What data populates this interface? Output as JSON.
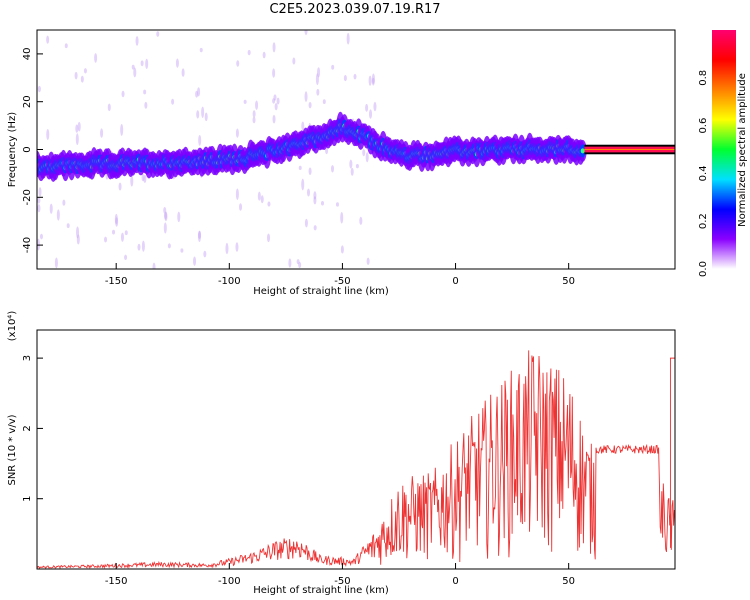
{
  "title": "C2E5.2023.039.07.19.R17",
  "chart_data": [
    {
      "type": "heatmap",
      "xlabel": "Height of straight line (km)",
      "ylabel": "Frequency (Hz)",
      "xlim": [
        -185,
        97
      ],
      "ylim": [
        -50,
        50
      ],
      "xticks": [
        -150,
        -100,
        -50,
        0,
        50
      ],
      "yticks": [
        -40,
        -20,
        0,
        20,
        40
      ],
      "colorbar": {
        "label": "Normalized spectral amplitude",
        "range": [
          0.0,
          1.0
        ],
        "ticks": [
          "0.0",
          "0.2",
          "0.4",
          "0.6",
          "0.8"
        ],
        "colors": [
          "#ffffff",
          "#8a00ff",
          "#0000ff",
          "#00e0ff",
          "#00ff30",
          "#ffff00",
          "#ff8000",
          "#ff0000",
          "#ff0070"
        ]
      },
      "track": [
        {
          "x": -185,
          "freq": -7
        },
        {
          "x": -150,
          "freq": -6
        },
        {
          "x": -110,
          "freq": -5
        },
        {
          "x": -90,
          "freq": -3
        },
        {
          "x": -75,
          "freq": 1
        },
        {
          "x": -60,
          "freq": 5
        },
        {
          "x": -50,
          "freq": 9
        },
        {
          "x": -40,
          "freq": 5
        },
        {
          "x": -30,
          "freq": 0
        },
        {
          "x": -20,
          "freq": -3
        },
        {
          "x": 0,
          "freq": -1
        },
        {
          "x": 30,
          "freq": 0
        },
        {
          "x": 55,
          "freq": 0
        },
        {
          "x": 97,
          "freq": 0
        }
      ]
    },
    {
      "type": "line",
      "xlabel": "Height of straight line (km)",
      "ylabel": "SNR (10 * v/v)",
      "scale_label": "(x10⁴)",
      "xlim": [
        -185,
        97
      ],
      "ylim": [
        0,
        3.4
      ],
      "xticks": [
        -150,
        -100,
        -50,
        0,
        50
      ],
      "yticks": [
        1,
        2,
        3
      ],
      "color": "#ee3333",
      "envelope": [
        {
          "x": -185,
          "y": 0.04
        },
        {
          "x": -160,
          "y": 0.06
        },
        {
          "x": -130,
          "y": 0.1
        },
        {
          "x": -110,
          "y": 0.08
        },
        {
          "x": -100,
          "y": 0.15
        },
        {
          "x": -90,
          "y": 0.25
        },
        {
          "x": -80,
          "y": 0.4
        },
        {
          "x": -70,
          "y": 0.5
        },
        {
          "x": -60,
          "y": 0.2
        },
        {
          "x": -45,
          "y": 0.15
        },
        {
          "x": -35,
          "y": 0.6
        },
        {
          "x": -25,
          "y": 1.3
        },
        {
          "x": -10,
          "y": 1.4
        },
        {
          "x": 5,
          "y": 2.1
        },
        {
          "x": 20,
          "y": 2.7
        },
        {
          "x": 35,
          "y": 3.2
        },
        {
          "x": 50,
          "y": 2.8
        },
        {
          "x": 60,
          "y": 1.8
        },
        {
          "x": 85,
          "y": 1.8
        },
        {
          "x": 95,
          "y": 1.0
        }
      ],
      "plateau": {
        "start": 62,
        "end": 90,
        "y": 1.7
      },
      "spike": {
        "x": 95,
        "y": 3.0
      }
    }
  ]
}
